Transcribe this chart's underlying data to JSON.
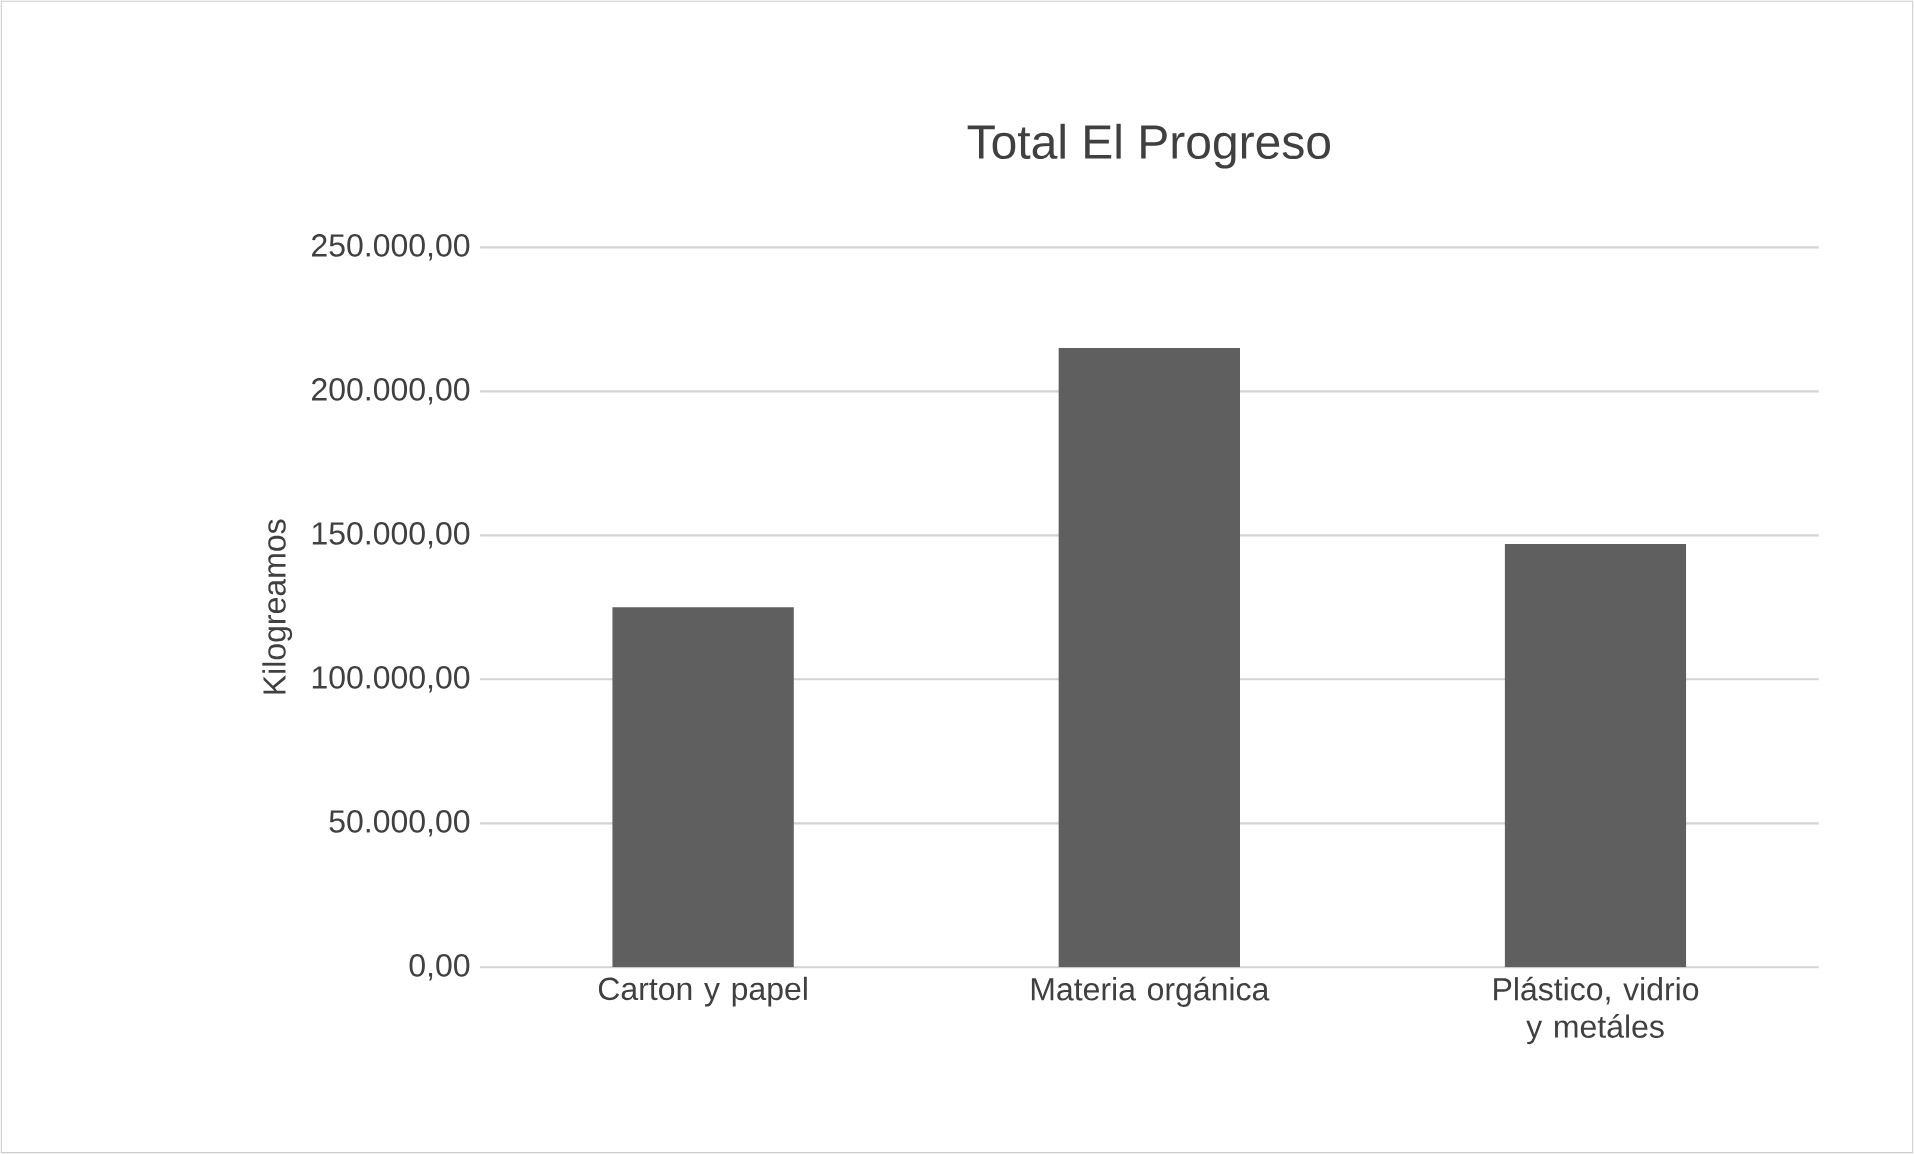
{
  "chart_data": {
    "type": "bar",
    "title": "Total El Progreso",
    "ylabel": "Kilogreamos",
    "categories": [
      "Carton y papel",
      "Materia orgánica",
      "Plástico, vidrio y metáles"
    ],
    "values": [
      125000,
      215000,
      147000
    ],
    "color": "#5f5f5f",
    "ylim": [
      0,
      250000
    ],
    "yticks": [
      {
        "value": 0,
        "label": "0,00"
      },
      {
        "value": 50000,
        "label": "50.000,00"
      },
      {
        "value": 100000,
        "label": "100.000,00"
      },
      {
        "value": 150000,
        "label": "150.000,00"
      },
      {
        "value": 200000,
        "label": "200.000,00"
      },
      {
        "value": 250000,
        "label": "250.000,00"
      }
    ],
    "grid": "y"
  }
}
